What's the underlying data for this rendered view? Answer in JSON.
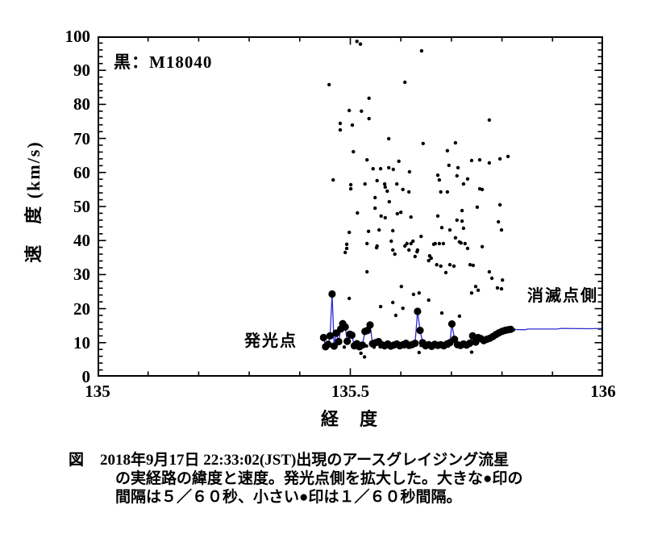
{
  "figure": {
    "series_label": "黒：M18040",
    "annotations": {
      "origin": "発光点",
      "end": "消滅点側"
    },
    "axis_titles": {
      "x": "経　度",
      "y": "速　度 (km/s)"
    },
    "colors": {
      "line": "#2b2bd2",
      "marker": "#000000",
      "axis": "#000000",
      "background": "#ffffff"
    }
  },
  "caption": {
    "prefix": "図",
    "lines": [
      "2018年9月17日 22:33:02(JST)出現のアースグレイジング流星",
      "の実経路の緯度と速度。発光点側を拡大した。大きな●印の",
      "間隔は５／６０秒、小さい●印は１／６０秒間隔。"
    ]
  },
  "chart_data": {
    "type": "scatter",
    "title": "黒：M18040",
    "xlabel": "経度",
    "ylabel": "速度 (km/s)",
    "xlim": [
      135,
      136
    ],
    "ylim": [
      0,
      100
    ],
    "grid": false,
    "legend_position": "none",
    "x_ticks": {
      "minor_step": 0.1,
      "major_labels": [
        {
          "value": 135,
          "label": "135"
        },
        {
          "value": 135.5,
          "label": "135.5"
        },
        {
          "value": 136,
          "label": "136"
        }
      ]
    },
    "y_ticks": {
      "minor_step": 2,
      "major_step": 10,
      "major_labels": [
        {
          "value": 0,
          "label": "0"
        },
        {
          "value": 10,
          "label": "10"
        },
        {
          "value": 20,
          "label": "20"
        },
        {
          "value": 30,
          "label": "30"
        },
        {
          "value": 40,
          "label": "40"
        },
        {
          "value": 50,
          "label": "50"
        },
        {
          "value": 60,
          "label": "60"
        },
        {
          "value": 70,
          "label": "70"
        },
        {
          "value": 80,
          "label": "80"
        },
        {
          "value": 90,
          "label": "90"
        },
        {
          "value": 100,
          "label": "100"
        }
      ]
    },
    "series": [
      {
        "name": "小さい●印（1／60秒間隔）",
        "marker": "small",
        "line": false,
        "points": [
          [
            135.513,
            98.5
          ],
          [
            135.52,
            97.7
          ],
          [
            135.641,
            95.7
          ],
          [
            135.458,
            85.8
          ],
          [
            135.608,
            86.5
          ],
          [
            135.537,
            81.8
          ],
          [
            135.498,
            78.2
          ],
          [
            135.522,
            78.0
          ],
          [
            135.537,
            75.8
          ],
          [
            135.48,
            74.4
          ],
          [
            135.504,
            73.9
          ],
          [
            135.48,
            72.5
          ],
          [
            135.775,
            75.4
          ],
          [
            135.576,
            69.9
          ],
          [
            135.644,
            68.5
          ],
          [
            135.708,
            68.7
          ],
          [
            135.692,
            66.4
          ],
          [
            135.506,
            66.1
          ],
          [
            135.533,
            63.7
          ],
          [
            135.596,
            63.3
          ],
          [
            135.74,
            63.5
          ],
          [
            135.756,
            63.7
          ],
          [
            135.796,
            64.0
          ],
          [
            135.812,
            64.7
          ],
          [
            135.775,
            62.8
          ],
          [
            135.545,
            61.1
          ],
          [
            135.56,
            61.1
          ],
          [
            135.576,
            61.4
          ],
          [
            135.585,
            60.9
          ],
          [
            135.617,
            60.2
          ],
          [
            135.695,
            62.1
          ],
          [
            135.713,
            61.4
          ],
          [
            135.466,
            57.8
          ],
          [
            135.673,
            59.2
          ],
          [
            135.676,
            57.8
          ],
          [
            135.711,
            59.0
          ],
          [
            135.732,
            58.1
          ],
          [
            135.501,
            56.4
          ],
          [
            135.501,
            55.2
          ],
          [
            135.529,
            56.6
          ],
          [
            135.553,
            57.6
          ],
          [
            135.568,
            56.6
          ],
          [
            135.569,
            55.7
          ],
          [
            135.573,
            54.5
          ],
          [
            135.592,
            56.6
          ],
          [
            135.604,
            55.0
          ],
          [
            135.616,
            54.3
          ],
          [
            135.679,
            54.3
          ],
          [
            135.692,
            54.3
          ],
          [
            135.724,
            56.6
          ],
          [
            135.756,
            55.2
          ],
          [
            135.761,
            55.0
          ],
          [
            135.549,
            52.6
          ],
          [
            135.577,
            51.4
          ],
          [
            135.514,
            48.1
          ],
          [
            135.549,
            49.5
          ],
          [
            135.593,
            47.9
          ],
          [
            135.6,
            48.3
          ],
          [
            135.62,
            46.9
          ],
          [
            135.673,
            47.2
          ],
          [
            135.561,
            47.2
          ],
          [
            135.569,
            46.7
          ],
          [
            135.711,
            46.0
          ],
          [
            135.721,
            48.8
          ],
          [
            135.751,
            49.8
          ],
          [
            135.721,
            45.7
          ],
          [
            135.793,
            45.5
          ],
          [
            135.796,
            50.5
          ],
          [
            135.681,
            43.8
          ],
          [
            135.697,
            43.1
          ],
          [
            135.498,
            42.4
          ],
          [
            135.536,
            42.7
          ],
          [
            135.557,
            43.1
          ],
          [
            135.584,
            42.9
          ],
          [
            135.724,
            43.6
          ],
          [
            135.799,
            43.1
          ],
          [
            135.708,
            40.8
          ],
          [
            135.64,
            41.2
          ],
          [
            135.612,
            39.1
          ],
          [
            135.62,
            39.1
          ],
          [
            135.533,
            39.1
          ],
          [
            135.553,
            38.4
          ],
          [
            135.493,
            38.9
          ],
          [
            135.493,
            37.7
          ],
          [
            135.616,
            37.2
          ],
          [
            135.633,
            37.2
          ],
          [
            135.665,
            38.9
          ],
          [
            135.676,
            39.1
          ],
          [
            135.719,
            39.3
          ],
          [
            135.727,
            39.1
          ],
          [
            135.668,
            39.1
          ],
          [
            135.684,
            39.1
          ],
          [
            135.761,
            38.2
          ],
          [
            135.716,
            39.6
          ],
          [
            135.732,
            37.7
          ],
          [
            135.49,
            36.5
          ],
          [
            135.552,
            37.9
          ],
          [
            135.581,
            39.8
          ],
          [
            135.584,
            37.2
          ],
          [
            135.588,
            36.0
          ],
          [
            135.608,
            38.4
          ],
          [
            135.624,
            39.8
          ],
          [
            135.632,
            36.7
          ],
          [
            135.628,
            35.3
          ],
          [
            135.657,
            35.5
          ],
          [
            135.66,
            34.8
          ],
          [
            135.655,
            34.1
          ],
          [
            135.671,
            32.9
          ],
          [
            135.679,
            32.5
          ],
          [
            135.689,
            30.6
          ],
          [
            135.697,
            32.9
          ],
          [
            135.705,
            32.5
          ],
          [
            135.737,
            32.9
          ],
          [
            135.743,
            32.7
          ],
          [
            135.775,
            30.8
          ],
          [
            135.533,
            30.8
          ],
          [
            135.748,
            26.5
          ],
          [
            135.753,
            25.4
          ],
          [
            135.78,
            28.9
          ],
          [
            135.791,
            26.1
          ],
          [
            135.799,
            25.8
          ],
          [
            135.801,
            28.4
          ],
          [
            135.74,
            24.6
          ],
          [
            135.601,
            26.5
          ],
          [
            135.625,
            24.2
          ],
          [
            135.636,
            24.6
          ],
          [
            135.56,
            20.6
          ],
          [
            135.584,
            21.8
          ],
          [
            135.604,
            20.1
          ],
          [
            135.655,
            22.5
          ],
          [
            135.681,
            18.7
          ],
          [
            135.716,
            17.8
          ],
          [
            135.498,
            23.0
          ],
          [
            135.59,
            18.0
          ],
          [
            135.521,
            6.9
          ],
          [
            135.636,
            7.1
          ],
          [
            135.74,
            7.2
          ],
          [
            135.528,
            5.8
          ],
          [
            135.454,
            8.6
          ],
          [
            135.459,
            9.2
          ],
          [
            135.475,
            9.8
          ],
          [
            135.488,
            8.7
          ],
          [
            135.496,
            11.0
          ],
          [
            135.506,
            8.6
          ],
          [
            135.515,
            9.4
          ],
          [
            135.521,
            8.6
          ],
          [
            135.532,
            9.0
          ],
          [
            135.547,
            8.7
          ],
          [
            135.553,
            9.8
          ],
          [
            135.559,
            8.8
          ],
          [
            135.565,
            9.7
          ],
          [
            135.571,
            8.9
          ],
          [
            135.577,
            9.4
          ],
          [
            135.583,
            8.8
          ],
          [
            135.589,
            9.5
          ],
          [
            135.595,
            8.9
          ],
          [
            135.601,
            9.3
          ],
          [
            135.607,
            8.8
          ],
          [
            135.613,
            9.6
          ],
          [
            135.619,
            9.0
          ],
          [
            135.625,
            9.6
          ],
          [
            135.64,
            9.2
          ],
          [
            135.646,
            8.8
          ],
          [
            135.652,
            9.6
          ],
          [
            135.658,
            9.1
          ],
          [
            135.664,
            9.3
          ],
          [
            135.67,
            8.9
          ],
          [
            135.676,
            9.6
          ],
          [
            135.682,
            9.0
          ],
          [
            135.688,
            9.3
          ],
          [
            135.694,
            9.0
          ],
          [
            135.708,
            10.2
          ],
          [
            135.714,
            9.8
          ],
          [
            135.72,
            9.3
          ],
          [
            135.726,
            9.9
          ],
          [
            135.732,
            9.5
          ],
          [
            135.738,
            10.5
          ],
          [
            135.745,
            10.8
          ],
          [
            135.75,
            10.5
          ],
          [
            135.756,
            10.9
          ],
          [
            135.762,
            10.8
          ],
          [
            135.768,
            11.2
          ],
          [
            135.774,
            11.5
          ],
          [
            135.78,
            11.9
          ],
          [
            135.786,
            12.2
          ],
          [
            135.792,
            12.6
          ],
          [
            135.798,
            13.0
          ],
          [
            135.804,
            13.4
          ],
          [
            135.81,
            13.6
          ],
          [
            135.815,
            13.8
          ],
          [
            135.82,
            13.9
          ],
          [
            135.823,
            13.8
          ]
        ]
      },
      {
        "name": "大きい●印（5／60秒間隔）実経路",
        "marker": "large",
        "line": true,
        "points": [
          [
            135.447,
            11.5
          ],
          [
            135.451,
            8.8
          ],
          [
            135.456,
            9.5
          ],
          [
            135.46,
            12.0
          ],
          [
            135.464,
            24.3
          ],
          [
            135.468,
            9.0
          ],
          [
            135.472,
            12.8
          ],
          [
            135.477,
            10.3
          ],
          [
            135.481,
            14.0
          ],
          [
            135.485,
            15.6
          ],
          [
            135.49,
            14.6
          ],
          [
            135.494,
            10.4
          ],
          [
            135.499,
            12.5
          ],
          [
            135.503,
            12.2
          ],
          [
            135.508,
            9.1
          ],
          [
            135.513,
            9.7
          ],
          [
            135.518,
            8.8
          ],
          [
            135.524,
            9.3
          ],
          [
            135.529,
            13.3
          ],
          [
            135.534,
            13.6
          ],
          [
            135.539,
            15.2
          ],
          [
            135.544,
            9.7
          ],
          [
            135.55,
            10.0
          ],
          [
            135.556,
            10.3
          ],
          [
            135.562,
            9.4
          ],
          [
            135.568,
            9.1
          ],
          [
            135.574,
            9.6
          ],
          [
            135.58,
            9.0
          ],
          [
            135.586,
            9.3
          ],
          [
            135.592,
            9.6
          ],
          [
            135.598,
            9.1
          ],
          [
            135.604,
            9.4
          ],
          [
            135.61,
            9.8
          ],
          [
            135.616,
            9.2
          ],
          [
            135.622,
            9.4
          ],
          [
            135.628,
            9.8
          ],
          [
            135.633,
            19.2
          ],
          [
            135.638,
            13.6
          ],
          [
            135.643,
            10.0
          ],
          [
            135.649,
            9.1
          ],
          [
            135.655,
            9.4
          ],
          [
            135.661,
            8.9
          ],
          [
            135.667,
            9.5
          ],
          [
            135.673,
            9.2
          ],
          [
            135.679,
            9.4
          ],
          [
            135.685,
            9.1
          ],
          [
            135.691,
            9.6
          ],
          [
            135.697,
            10.0
          ],
          [
            135.701,
            15.5
          ],
          [
            135.706,
            11.0
          ],
          [
            135.712,
            9.4
          ],
          [
            135.718,
            9.2
          ],
          [
            135.724,
            9.6
          ],
          [
            135.73,
            9.3
          ],
          [
            135.736,
            9.8
          ],
          [
            135.742,
            12.0
          ],
          [
            135.748,
            10.2
          ],
          [
            135.753,
            11.5
          ],
          [
            135.758,
            11.2
          ],
          [
            135.764,
            10.6
          ],
          [
            135.77,
            11.0
          ],
          [
            135.776,
            11.3
          ],
          [
            135.782,
            11.8
          ],
          [
            135.788,
            12.4
          ],
          [
            135.794,
            12.9
          ],
          [
            135.8,
            13.3
          ],
          [
            135.806,
            13.6
          ],
          [
            135.812,
            13.8
          ],
          [
            135.817,
            13.9
          ]
        ]
      },
      {
        "name": "消滅点側への経路（線のみ）",
        "marker": "none",
        "line": true,
        "points": [
          [
            135.817,
            13.9
          ],
          [
            135.845,
            13.8
          ],
          [
            135.852,
            14.0
          ],
          [
            135.91,
            14.0
          ],
          [
            135.916,
            14.2
          ],
          [
            135.975,
            14.1
          ],
          [
            136.0,
            14.2
          ]
        ]
      }
    ]
  }
}
